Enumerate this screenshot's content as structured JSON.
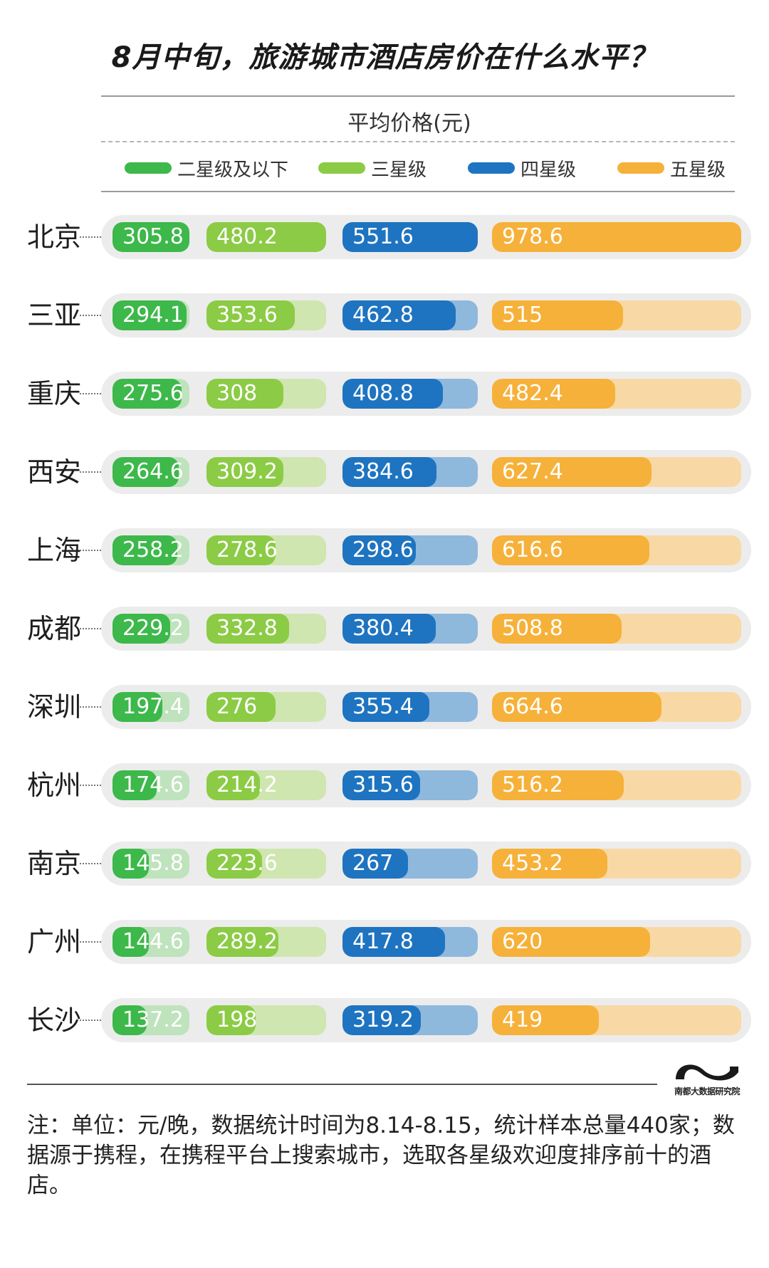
{
  "title": "8月中旬，旅游城市酒店房价在什么水平？",
  "subtitle": "平均价格(元)",
  "colors": {
    "star2": "#3db84a",
    "star2_light": "#bfe3bd",
    "star3": "#8ccb45",
    "star3_light": "#cfe6b0",
    "star4": "#1e74c0",
    "star4_light": "#8fb8dd",
    "star5": "#f6b13a",
    "star5_light": "#f8d9a5"
  },
  "chart_data": {
    "type": "bar",
    "title": "8月中旬，旅游城市酒店房价在什么水平？",
    "ylabel": "平均价格(元)",
    "legend_position": "top",
    "categories": [
      "北京",
      "三亚",
      "重庆",
      "西安",
      "上海",
      "成都",
      "深圳",
      "杭州",
      "南京",
      "广州",
      "长沙"
    ],
    "series": [
      {
        "name": "二星级及以下",
        "color": "#3db84a",
        "values": [
          305.8,
          294.1,
          275.6,
          264.6,
          258.2,
          229.2,
          197.4,
          174.6,
          145.8,
          144.6,
          137.2
        ]
      },
      {
        "name": "三星级",
        "color": "#8ccb45",
        "values": [
          480.2,
          353.6,
          308,
          309.2,
          278.6,
          332.8,
          276,
          214.2,
          223.6,
          289.2,
          198
        ]
      },
      {
        "name": "四星级",
        "color": "#1e74c0",
        "values": [
          551.6,
          462.8,
          408.8,
          384.6,
          298.6,
          380.4,
          355.4,
          315.6,
          267,
          417.8,
          319.2
        ]
      },
      {
        "name": "五星级",
        "color": "#f6b13a",
        "values": [
          978.6,
          515,
          482.4,
          627.4,
          616.6,
          508.8,
          664.6,
          516.2,
          453.2,
          620,
          419
        ]
      }
    ],
    "value_labels": [
      [
        "305.8",
        "480.2",
        "551.6",
        "978.6"
      ],
      [
        "294.1",
        "353.6",
        "462.8",
        "515"
      ],
      [
        "275.6",
        "308",
        "408.8",
        "482.4"
      ],
      [
        "264.6",
        "309.2",
        "384.6",
        "627.4"
      ],
      [
        "258.2",
        "278.6",
        "298.6",
        "616.6"
      ],
      [
        "229.2",
        "332.8",
        "380.4",
        "508.8"
      ],
      [
        "197.4",
        "276",
        "355.4",
        "664.6"
      ],
      [
        "174.6",
        "214.2",
        "315.6",
        "516.2"
      ],
      [
        "145.8",
        "223.6",
        "267",
        "453.2"
      ],
      [
        "144.6",
        "289.2",
        "417.8",
        "620"
      ],
      [
        "137.2",
        "198",
        "319.2",
        "419"
      ]
    ]
  },
  "logo": {
    "icon": "wave-logo-icon",
    "text": "南都大数据研究院"
  },
  "note": "注：单位：元/晚，数据统计时间为8.14-8.15，统计样本总量440家；数据源于携程，在携程平台上搜索城市，选取各星级欢迎度排序前十的酒店。"
}
